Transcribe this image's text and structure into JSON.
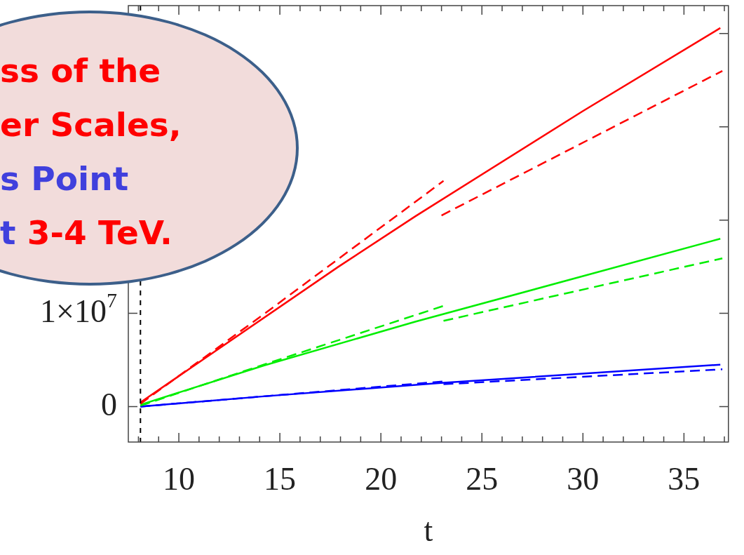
{
  "chart_data": {
    "type": "line",
    "xlabel": "t",
    "annotations": [
      "ss of the",
      "er Scales,",
      "s Point",
      "t 3-4 TeV."
    ],
    "xlim": [
      7.5,
      37.2
    ],
    "ylim": [
      -3800000,
      43000000
    ],
    "xticks": [
      {
        "value": 8,
        "label": null
      },
      {
        "value": 9,
        "label": null
      },
      10,
      {
        "value": 11,
        "label": null
      },
      {
        "value": 12,
        "label": null
      },
      {
        "value": 13,
        "label": null
      },
      {
        "value": 14,
        "label": null
      },
      15,
      {
        "value": 16,
        "label": null
      },
      {
        "value": 17,
        "label": null
      },
      {
        "value": 18,
        "label": null
      },
      {
        "value": 19,
        "label": null
      },
      20,
      {
        "value": 21,
        "label": null
      },
      {
        "value": 22,
        "label": null
      },
      {
        "value": 23,
        "label": null
      },
      {
        "value": 24,
        "label": null
      },
      25,
      {
        "value": 26,
        "label": null
      },
      {
        "value": 27,
        "label": null
      },
      {
        "value": 28,
        "label": null
      },
      {
        "value": 29,
        "label": null
      },
      30,
      {
        "value": 31,
        "label": null
      },
      {
        "value": 32,
        "label": null
      },
      {
        "value": 33,
        "label": null
      },
      {
        "value": 34,
        "label": null
      },
      35,
      {
        "value": 36,
        "label": null
      },
      {
        "value": 37,
        "label": null
      }
    ],
    "yticks": [
      0,
      {
        "value": 10000000,
        "label": "1×10$^{7}$"
      },
      {
        "value": 20000000,
        "label": null
      },
      {
        "value": 30000000,
        "label": null
      },
      {
        "value": 40000000,
        "label": null
      }
    ],
    "ref_lines": [
      {
        "axis": "x",
        "value": 8.1,
        "color": "#000000",
        "line_style": "dashed"
      }
    ],
    "marker": "none",
    "series": [
      {
        "color": "#ff0000",
        "line_style": "solid",
        "x": [
          8.1,
          17.9,
          21.7,
          30,
          36.8
        ],
        "values": [
          450000,
          15000000,
          20400000,
          31700000,
          40600000
        ]
      },
      {
        "color": "#ff0000",
        "line_style": "dashed",
        "x": [
          8.1,
          14.2,
          23.1
        ],
        "values": [
          300000,
          9900000,
          24200000
        ]
      },
      {
        "color": "#ff0000",
        "line_style": "dashed",
        "x": [
          23.0,
          36.9
        ],
        "values": [
          20500000,
          36000000
        ]
      },
      {
        "color": "#00ee00",
        "line_style": "solid",
        "x": [
          8.1,
          14.2,
          21.7,
          36.8
        ],
        "values": [
          200000,
          4400000,
          9100000,
          18000000
        ]
      },
      {
        "color": "#00ee00",
        "line_style": "dashed",
        "x": [
          8.1,
          14.2,
          23.1
        ],
        "values": [
          100000,
          4500000,
          10800000
        ]
      },
      {
        "color": "#00ee00",
        "line_style": "dashed",
        "x": [
          23.1,
          36.9
        ],
        "values": [
          9200000,
          15900000
        ]
      },
      {
        "color": "#0000ff",
        "line_style": "solid",
        "x": [
          8.1,
          14.2,
          23.1,
          36.8
        ],
        "values": [
          0,
          1100000,
          2550000,
          4500000
        ]
      },
      {
        "color": "#0000ff",
        "line_style": "dashed",
        "x": [
          8.1,
          14.2,
          23.1
        ],
        "values": [
          0,
          1100000,
          2700000
        ]
      },
      {
        "color": "#0000ff",
        "line_style": "dashed",
        "x": [
          23.1,
          36.9
        ],
        "values": [
          2400000,
          4000000
        ]
      }
    ]
  }
}
